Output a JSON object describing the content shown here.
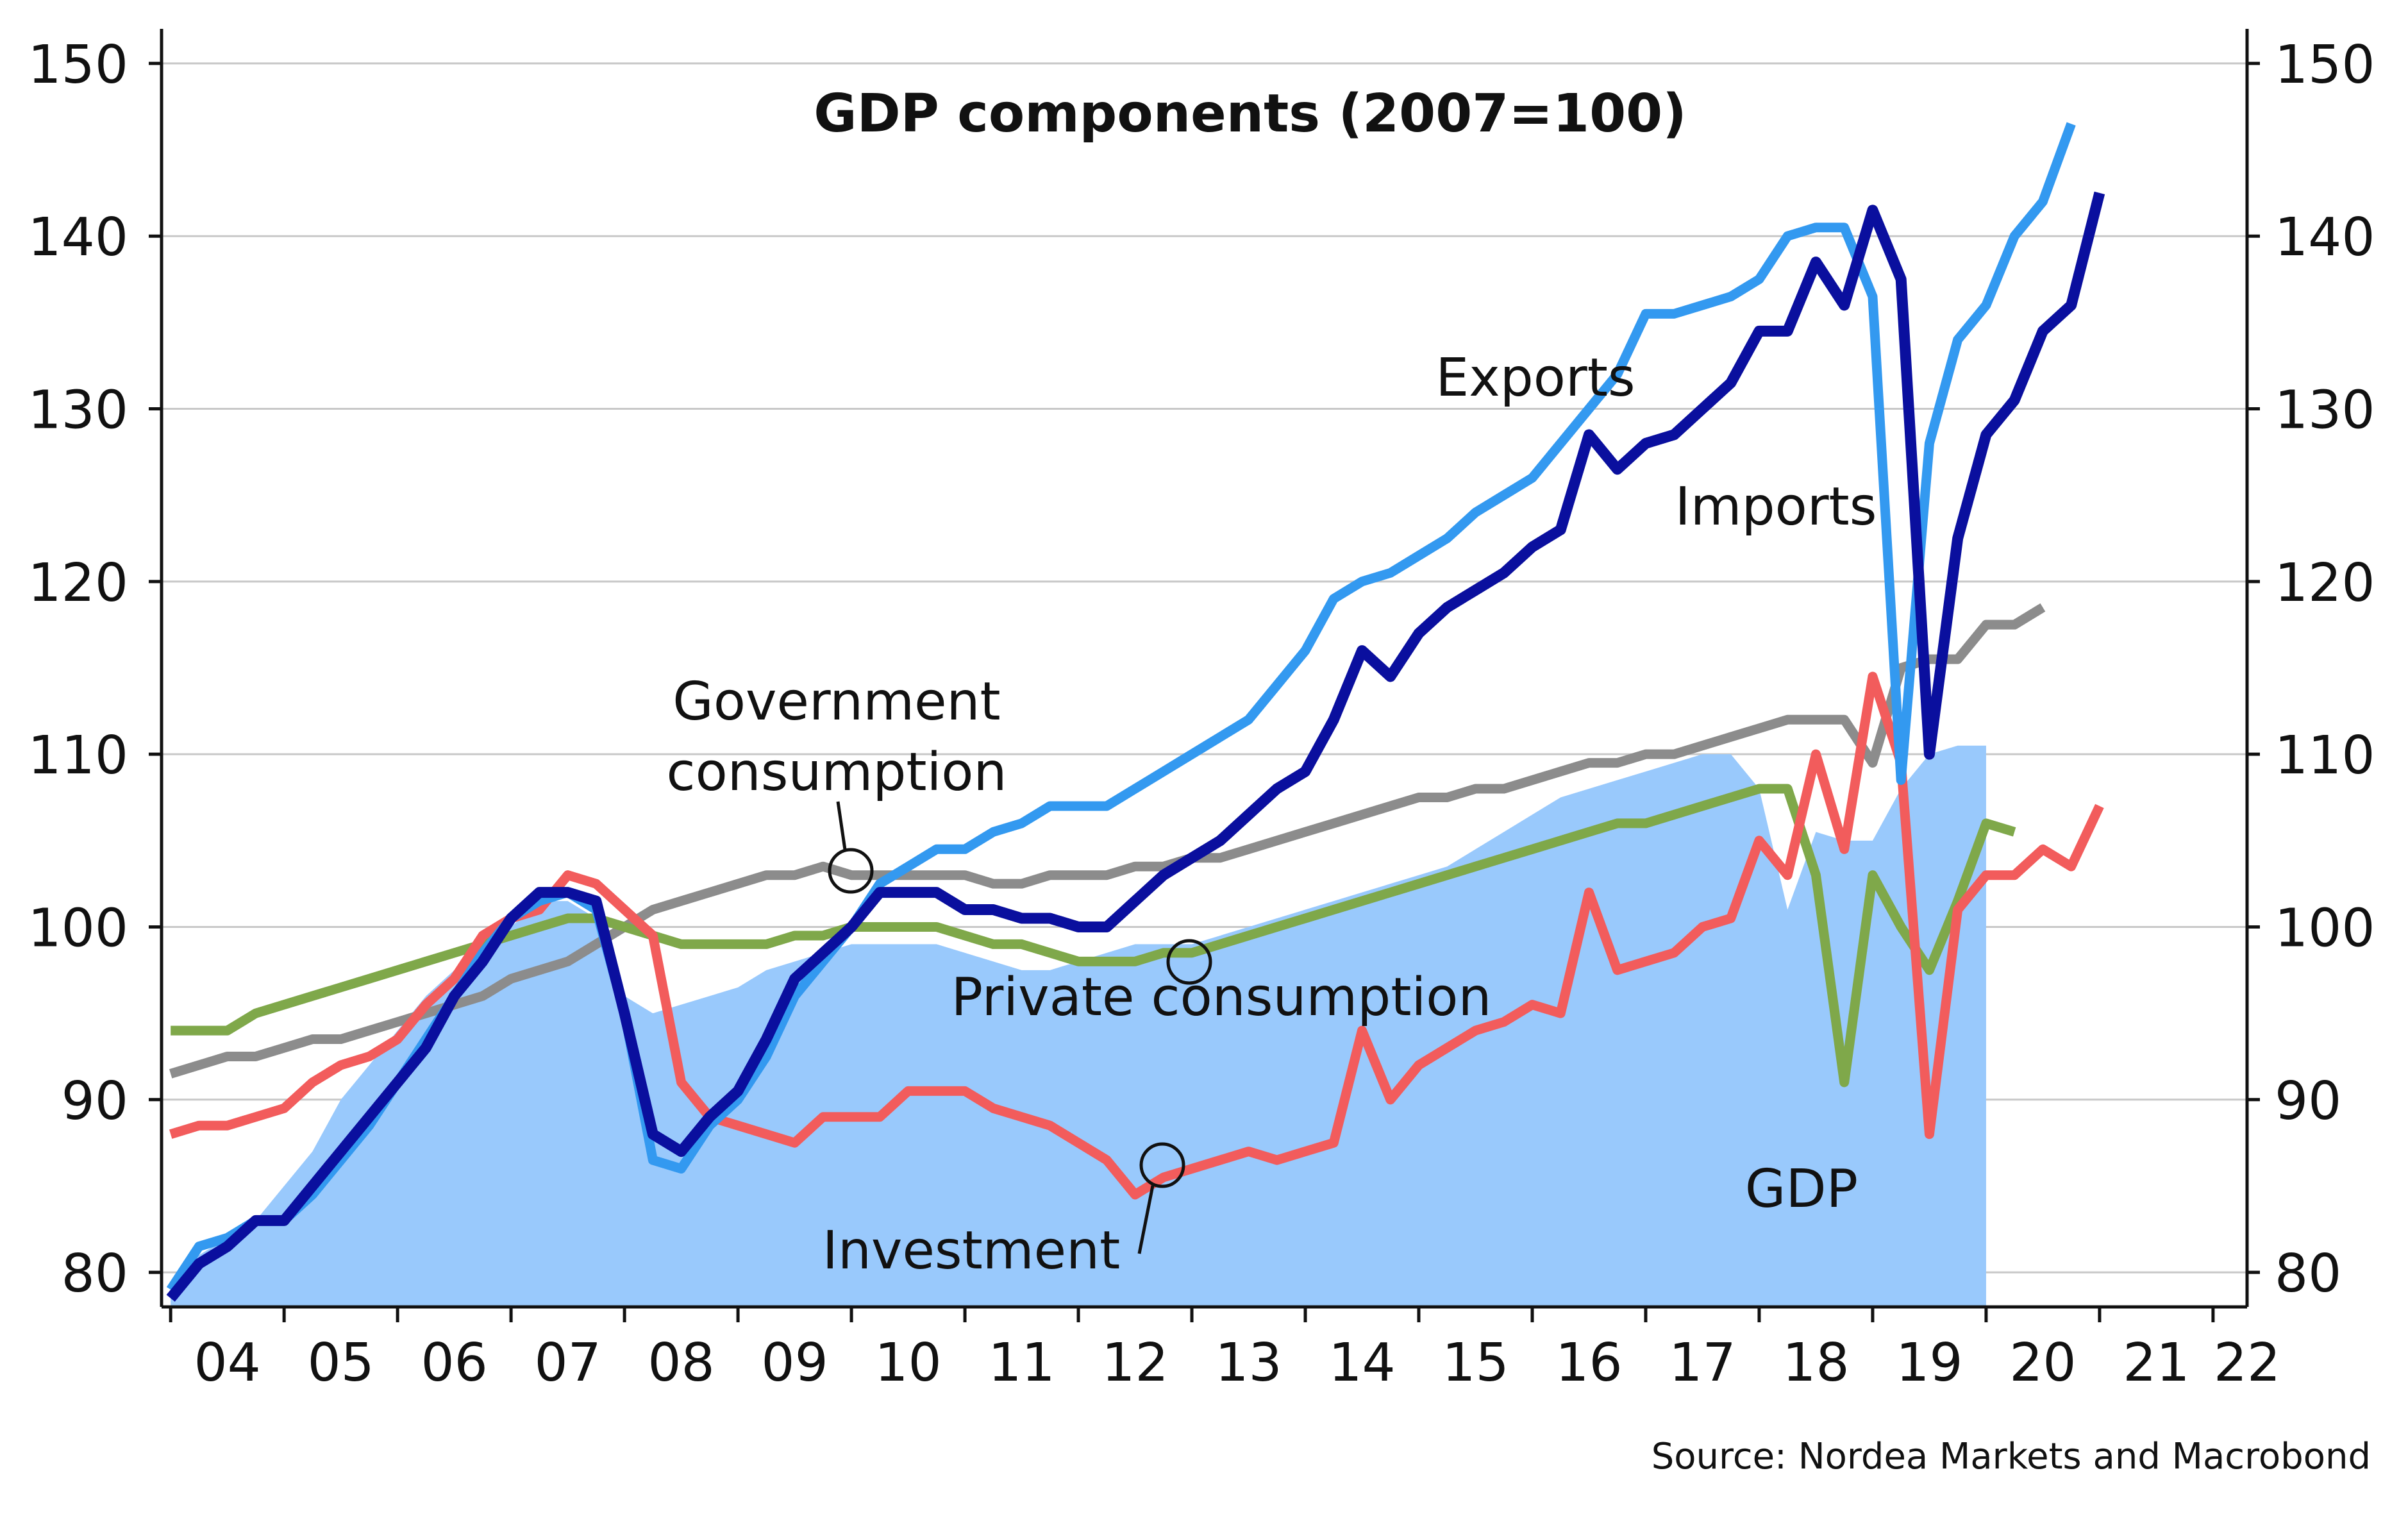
{
  "chart_data": {
    "type": "area",
    "title": "GDP components (2007=100)",
    "source": "Source: Nordea Markets and Macrobond",
    "xlabel": "",
    "ylabel": "",
    "ylim": [
      78,
      152
    ],
    "xlim": [
      2003.92,
      2022.3
    ],
    "y_ticks": [
      80,
      90,
      100,
      110,
      120,
      130,
      140,
      150
    ],
    "x_tick_labels": [
      "04",
      "05",
      "06",
      "07",
      "08",
      "09",
      "10",
      "11",
      "12",
      "13",
      "14",
      "15",
      "16",
      "17",
      "18",
      "19",
      "20",
      "21",
      "22"
    ],
    "grid": true,
    "dual_y_axis": true,
    "colors": {
      "gdp": "#99c9fc",
      "exports": "#3399f0",
      "imports": "#0a0f9e",
      "government": "#8c8c8c",
      "private": "#7fa84a",
      "investment": "#f25c5c",
      "grid": "#c8c8c8"
    },
    "series": [
      {
        "name": "GDP",
        "kind": "area",
        "color": "#99c9fc",
        "values": [
          79.5,
          81.0,
          82.0,
          83.0,
          85.0,
          87.0,
          90.0,
          92.0,
          94.0,
          96.0,
          97.5,
          98.5,
          100.0,
          101.5,
          101.5,
          100.5,
          96.0,
          95.0,
          95.5,
          96.0,
          96.5,
          97.5,
          98.0,
          98.5,
          99.0,
          99.0,
          99.0,
          99.0,
          98.5,
          98.0,
          97.5,
          97.5,
          98.0,
          98.5,
          99.0,
          99.0,
          99.0,
          99.5,
          100.0,
          100.5,
          101.0,
          101.5,
          102.0,
          102.5,
          103.0,
          103.5,
          104.5,
          105.5,
          106.5,
          107.5,
          108.0,
          108.5,
          109.0,
          109.5,
          110.0,
          110.0,
          108.0,
          101.0,
          105.5,
          105.0,
          105.0,
          108.0,
          110.0,
          110.5,
          110.5
        ]
      },
      {
        "name": "Exports",
        "kind": "line",
        "color": "#3399f0",
        "values": [
          79.0,
          81.5,
          82.0,
          83.0,
          83.0,
          84.5,
          86.5,
          88.5,
          91.0,
          93.5,
          96.0,
          98.5,
          100.5,
          101.5,
          102.0,
          101.0,
          95.0,
          86.5,
          86.0,
          88.5,
          90.0,
          92.5,
          96.0,
          98.0,
          100.0,
          102.5,
          103.5,
          104.5,
          104.5,
          105.5,
          106.0,
          107.0,
          107.0,
          107.0,
          108.0,
          109.0,
          110.0,
          111.0,
          112.0,
          114.0,
          116.0,
          119.0,
          120.0,
          120.5,
          121.5,
          122.5,
          124.0,
          125.0,
          126.0,
          128.0,
          130.0,
          132.0,
          135.5,
          135.5,
          136.0,
          136.5,
          137.5,
          140.0,
          140.5,
          140.5,
          136.5,
          108.5,
          128.0,
          134.0,
          136.0,
          140.0,
          142.0,
          146.5
        ]
      },
      {
        "name": "Imports",
        "kind": "line",
        "color": "#0a0f9e",
        "values": [
          78.5,
          80.5,
          81.5,
          83.0,
          83.0,
          85.0,
          87.0,
          89.0,
          91.0,
          93.0,
          96.0,
          98.0,
          100.5,
          102.0,
          102.0,
          101.5,
          95.0,
          88.0,
          87.0,
          89.0,
          90.5,
          93.5,
          97.0,
          98.5,
          100.0,
          102.0,
          102.0,
          102.0,
          101.0,
          101.0,
          100.5,
          100.5,
          100.0,
          100.0,
          101.5,
          103.0,
          104.0,
          105.0,
          106.5,
          108.0,
          109.0,
          112.0,
          116.0,
          114.5,
          117.0,
          118.5,
          119.5,
          120.5,
          122.0,
          123.0,
          128.5,
          126.5,
          128.0,
          128.5,
          130.0,
          131.5,
          134.5,
          134.5,
          138.5,
          136.0,
          141.5,
          137.5,
          110.0,
          122.5,
          128.5,
          130.5,
          134.5,
          136.0,
          142.5
        ]
      },
      {
        "name": "Government consumption",
        "kind": "line",
        "color": "#8c8c8c",
        "values": [
          91.5,
          92.0,
          92.5,
          92.5,
          93.0,
          93.5,
          93.5,
          94.0,
          94.5,
          95.0,
          95.5,
          96.0,
          97.0,
          97.5,
          98.0,
          99.0,
          100.0,
          101.0,
          101.5,
          102.0,
          102.5,
          103.0,
          103.0,
          103.5,
          103.0,
          103.0,
          103.0,
          103.0,
          103.0,
          102.5,
          102.5,
          103.0,
          103.0,
          103.0,
          103.5,
          103.5,
          104.0,
          104.0,
          104.5,
          105.0,
          105.5,
          106.0,
          106.5,
          107.0,
          107.5,
          107.5,
          108.0,
          108.0,
          108.5,
          109.0,
          109.5,
          109.5,
          110.0,
          110.0,
          110.5,
          111.0,
          111.5,
          112.0,
          112.0,
          112.0,
          109.5,
          115.0,
          115.5,
          115.5,
          117.5,
          117.5,
          118.5
        ]
      },
      {
        "name": "Private consumption",
        "kind": "line",
        "color": "#7fa84a",
        "values": [
          94.0,
          94.0,
          94.0,
          95.0,
          95.5,
          96.0,
          96.5,
          97.0,
          97.5,
          98.0,
          98.5,
          99.0,
          99.5,
          100.0,
          100.5,
          100.5,
          100.0,
          99.5,
          99.0,
          99.0,
          99.0,
          99.0,
          99.5,
          99.5,
          100.0,
          100.0,
          100.0,
          100.0,
          99.5,
          99.0,
          99.0,
          98.5,
          98.0,
          98.0,
          98.0,
          98.5,
          98.5,
          99.0,
          99.5,
          100.0,
          100.5,
          101.0,
          101.5,
          102.0,
          102.5,
          103.0,
          103.5,
          104.0,
          104.5,
          105.0,
          105.5,
          106.0,
          106.0,
          106.5,
          107.0,
          107.5,
          108.0,
          108.0,
          103.0,
          91.0,
          103.0,
          100.0,
          97.5,
          101.5,
          106.0,
          105.5
        ]
      },
      {
        "name": "Investment",
        "kind": "line",
        "color": "#f25c5c",
        "values": [
          88.0,
          88.5,
          88.5,
          89.0,
          89.5,
          91.0,
          92.0,
          92.5,
          93.5,
          95.5,
          97.0,
          99.5,
          100.5,
          101.0,
          103.0,
          102.5,
          101.0,
          99.5,
          91.0,
          89.0,
          88.5,
          88.0,
          87.5,
          89.0,
          89.0,
          89.0,
          90.5,
          90.5,
          90.5,
          89.5,
          89.0,
          88.5,
          87.5,
          86.5,
          84.5,
          85.5,
          86.0,
          86.5,
          87.0,
          86.5,
          87.0,
          87.5,
          94.0,
          90.0,
          92.0,
          93.0,
          94.0,
          94.5,
          95.5,
          95.0,
          102.0,
          97.5,
          98.0,
          98.5,
          100.0,
          100.5,
          105.0,
          103.0,
          110.0,
          104.5,
          114.5,
          109.5,
          88.0,
          101.0,
          103.0,
          103.0,
          104.5,
          103.5,
          107.0
        ]
      }
    ],
    "annotations": [
      {
        "text": "Exports"
      },
      {
        "text": "Imports"
      },
      {
        "text": "Government",
        "text2": "consumption"
      },
      {
        "text": "Private consumption"
      },
      {
        "text": "Investment"
      },
      {
        "text": "GDP"
      }
    ]
  }
}
